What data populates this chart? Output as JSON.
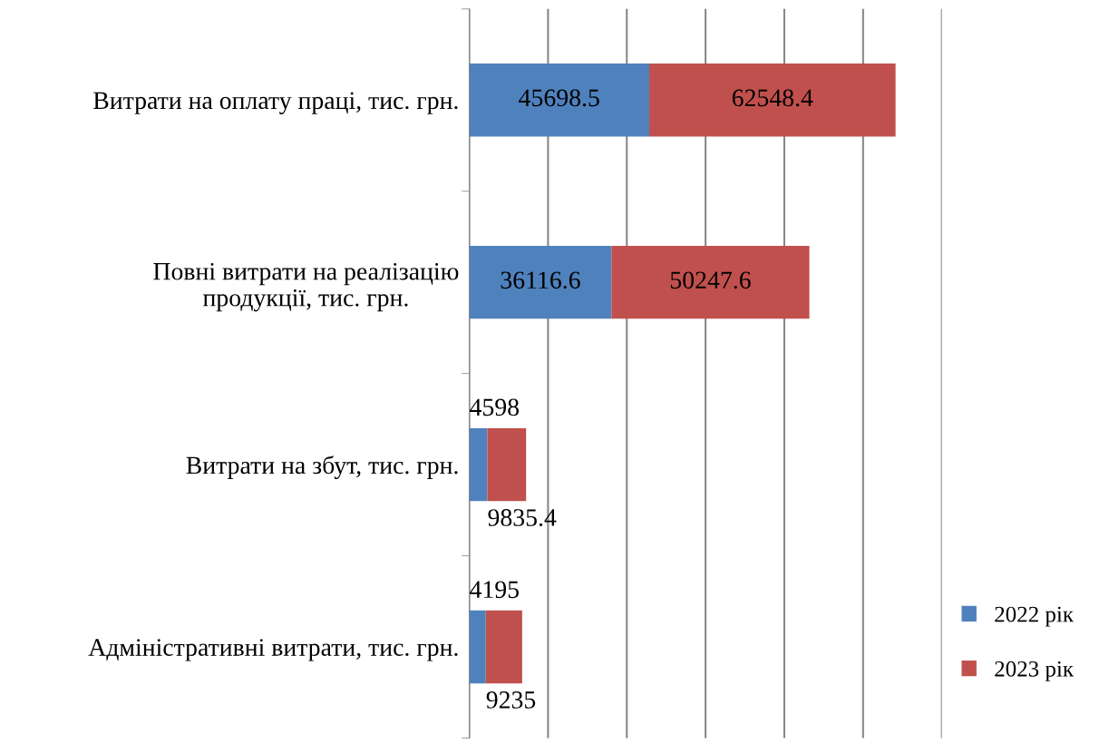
{
  "chart_data": {
    "type": "bar",
    "orientation": "horizontal",
    "stacked": true,
    "categories": [
      "Витрати на оплату праці, тис. грн.",
      "Повні витрати на реалізацію\nпродукції, тис. грн.",
      "Витрати на збут, тис. грн.",
      "Адміністративні витрати, тис. грн."
    ],
    "series": [
      {
        "name": "2022 рік",
        "color": "#4f81bd",
        "values": [
          45698.5,
          36116.6,
          4598,
          4195
        ]
      },
      {
        "name": "2023 рік",
        "color": "#c0504d",
        "values": [
          62548.4,
          50247.6,
          9835.4,
          9235
        ]
      }
    ],
    "xlim": [
      0,
      120000
    ],
    "xticks": [
      {
        "value": 0,
        "label": null
      },
      {
        "value": 20000,
        "label": null
      },
      {
        "value": 40000,
        "label": null
      },
      {
        "value": 60000,
        "label": null
      },
      {
        "value": 80000,
        "label": null
      },
      {
        "value": 100000,
        "label": null
      },
      {
        "value": 120000,
        "label": null
      }
    ],
    "tick_labels": "y",
    "grid": "x",
    "legend": "right",
    "data_labels": true
  }
}
